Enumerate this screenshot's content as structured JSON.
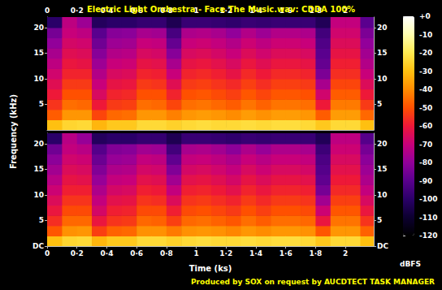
{
  "chart_data": {
    "type": "heatmap",
    "title": "Electric Light Orchestra - Face The Music.wav: CDDA 100%",
    "annotation": "Produced by SOX on request by AUCDTECT TASK MANAGER",
    "x_label": "Time (ks)",
    "y_label": "Frequency (kHz)",
    "xlim": [
      0,
      2.19
    ],
    "xticks": [
      0,
      {
        "value": 0.2,
        "label": "0·2"
      },
      {
        "value": 0.4,
        "label": "0·4"
      },
      {
        "value": 0.6,
        "label": "0·6"
      },
      {
        "value": 0.8,
        "label": "0·8"
      },
      1,
      {
        "value": 1.2,
        "label": "1·2"
      },
      {
        "value": 1.4,
        "label": "1·4"
      },
      {
        "value": 1.6,
        "label": "1·6"
      },
      {
        "value": 1.8,
        "label": "1·8"
      },
      2
    ],
    "ylim": [
      0,
      22.05
    ],
    "x_bins": [
      0,
      0.1,
      0.2,
      0.3,
      0.4,
      0.5,
      0.6,
      0.7,
      0.8,
      0.9,
      1.0,
      1.1,
      1.2,
      1.3,
      1.4,
      1.5,
      1.6,
      1.7,
      1.8,
      1.9,
      2.0,
      2.1,
      2.2
    ],
    "y_bins": [
      0,
      2,
      4,
      6,
      8,
      10,
      12,
      14,
      16,
      18,
      20,
      22.05
    ],
    "colorbar": {
      "range": [
        -120,
        0
      ],
      "ticks": [
        {
          "value": 0,
          "label": "+0"
        },
        -10,
        -20,
        -30,
        -40,
        -50,
        -60,
        -70,
        -80,
        -90,
        -100,
        -110,
        -120
      ],
      "label": "dBFS"
    },
    "channels": [
      {
        "yticks": [
          5,
          10,
          15,
          20
        ],
        "cells": [
          [
            -30,
            -48,
            -55,
            -60,
            -64,
            -68,
            -72,
            -76,
            -80,
            -85,
            -100
          ],
          [
            -25,
            -38,
            -45,
            -50,
            -54,
            -58,
            -61,
            -64,
            -67,
            -70,
            -72
          ],
          [
            -24,
            -38,
            -46,
            -50,
            -54,
            -58,
            -62,
            -65,
            -68,
            -72,
            -78
          ],
          [
            -32,
            -52,
            -60,
            -66,
            -70,
            -74,
            -78,
            -82,
            -86,
            -90,
            -102
          ],
          [
            -28,
            -46,
            -54,
            -58,
            -62,
            -66,
            -70,
            -74,
            -78,
            -82,
            -100
          ],
          [
            -28,
            -45,
            -53,
            -57,
            -61,
            -65,
            -69,
            -73,
            -77,
            -81,
            -100
          ],
          [
            -24,
            -38,
            -45,
            -50,
            -54,
            -58,
            -62,
            -66,
            -70,
            -76,
            -98
          ],
          [
            -24,
            -38,
            -46,
            -50,
            -55,
            -59,
            -63,
            -67,
            -71,
            -77,
            -98
          ],
          [
            -26,
            -42,
            -52,
            -58,
            -64,
            -70,
            -76,
            -82,
            -88,
            -94,
            -104
          ],
          [
            -24,
            -38,
            -45,
            -50,
            -54,
            -58,
            -62,
            -66,
            -70,
            -75,
            -97
          ],
          [
            -23,
            -37,
            -44,
            -49,
            -53,
            -57,
            -61,
            -65,
            -69,
            -74,
            -97
          ],
          [
            -24,
            -38,
            -46,
            -51,
            -55,
            -59,
            -63,
            -67,
            -71,
            -76,
            -98
          ],
          [
            -24,
            -40,
            -48,
            -53,
            -57,
            -62,
            -66,
            -70,
            -74,
            -80,
            -99
          ],
          [
            -23,
            -37,
            -44,
            -49,
            -53,
            -57,
            -61,
            -65,
            -69,
            -74,
            -97
          ],
          [
            -24,
            -39,
            -47,
            -52,
            -56,
            -60,
            -64,
            -68,
            -72,
            -78,
            -98
          ],
          [
            -23,
            -37,
            -44,
            -49,
            -53,
            -57,
            -61,
            -65,
            -69,
            -74,
            -97
          ],
          [
            -23,
            -37,
            -44,
            -49,
            -53,
            -57,
            -61,
            -65,
            -69,
            -74,
            -97
          ],
          [
            -24,
            -38,
            -45,
            -50,
            -54,
            -58,
            -62,
            -66,
            -70,
            -75,
            -97
          ],
          [
            -28,
            -48,
            -60,
            -68,
            -76,
            -84,
            -88,
            -90,
            -92,
            -95,
            -103
          ],
          [
            -24,
            -37,
            -43,
            -48,
            -52,
            -56,
            -59,
            -62,
            -65,
            -68,
            -71
          ],
          [
            -24,
            -37,
            -43,
            -48,
            -52,
            -56,
            -59,
            -62,
            -65,
            -68,
            -71
          ],
          [
            -30,
            -46,
            -54,
            -60,
            -65,
            -70,
            -74,
            -77,
            -80,
            -84,
            -90
          ]
        ]
      },
      {
        "yticks": [
          {
            "value": 0,
            "label": "DC"
          },
          5,
          10,
          15,
          20
        ],
        "cells": [
          [
            -30,
            -49,
            -56,
            -61,
            -65,
            -69,
            -73,
            -77,
            -81,
            -86,
            -100
          ],
          [
            -25,
            -39,
            -46,
            -51,
            -55,
            -59,
            -62,
            -65,
            -68,
            -71,
            -73
          ],
          [
            -24,
            -38,
            -46,
            -51,
            -55,
            -59,
            -63,
            -66,
            -69,
            -73,
            -79
          ],
          [
            -32,
            -53,
            -61,
            -67,
            -71,
            -75,
            -79,
            -83,
            -87,
            -91,
            -102
          ],
          [
            -28,
            -47,
            -55,
            -59,
            -63,
            -67,
            -71,
            -75,
            -79,
            -83,
            -100
          ],
          [
            -28,
            -46,
            -54,
            -58,
            -62,
            -66,
            -70,
            -74,
            -78,
            -82,
            -100
          ],
          [
            -24,
            -39,
            -46,
            -51,
            -55,
            -59,
            -63,
            -67,
            -71,
            -77,
            -98
          ],
          [
            -24,
            -39,
            -47,
            -51,
            -56,
            -60,
            -64,
            -68,
            -72,
            -78,
            -98
          ],
          [
            -26,
            -43,
            -53,
            -59,
            -65,
            -71,
            -77,
            -83,
            -89,
            -95,
            -104
          ],
          [
            -24,
            -39,
            -46,
            -51,
            -55,
            -59,
            -63,
            -67,
            -71,
            -76,
            -97
          ],
          [
            -23,
            -38,
            -45,
            -50,
            -54,
            -58,
            -62,
            -66,
            -70,
            -75,
            -97
          ],
          [
            -24,
            -39,
            -47,
            -52,
            -56,
            -60,
            -64,
            -68,
            -72,
            -77,
            -98
          ],
          [
            -24,
            -41,
            -49,
            -54,
            -58,
            -63,
            -67,
            -71,
            -75,
            -81,
            -99
          ],
          [
            -23,
            -38,
            -45,
            -50,
            -54,
            -58,
            -62,
            -66,
            -70,
            -75,
            -97
          ],
          [
            -24,
            -40,
            -48,
            -53,
            -57,
            -61,
            -65,
            -69,
            -73,
            -79,
            -98
          ],
          [
            -23,
            -38,
            -45,
            -50,
            -54,
            -58,
            -62,
            -66,
            -70,
            -75,
            -97
          ],
          [
            -23,
            -38,
            -45,
            -50,
            -54,
            -58,
            -62,
            -66,
            -70,
            -75,
            -97
          ],
          [
            -24,
            -39,
            -46,
            -51,
            -55,
            -59,
            -63,
            -67,
            -71,
            -76,
            -97
          ],
          [
            -28,
            -49,
            -61,
            -69,
            -77,
            -85,
            -89,
            -91,
            -93,
            -96,
            -103
          ],
          [
            -24,
            -38,
            -44,
            -49,
            -53,
            -57,
            -60,
            -63,
            -66,
            -69,
            -72
          ],
          [
            -24,
            -38,
            -44,
            -49,
            -53,
            -57,
            -60,
            -63,
            -66,
            -69,
            -72
          ],
          [
            -30,
            -47,
            -55,
            -61,
            -66,
            -71,
            -75,
            -78,
            -81,
            -85,
            -91
          ]
        ]
      }
    ]
  }
}
